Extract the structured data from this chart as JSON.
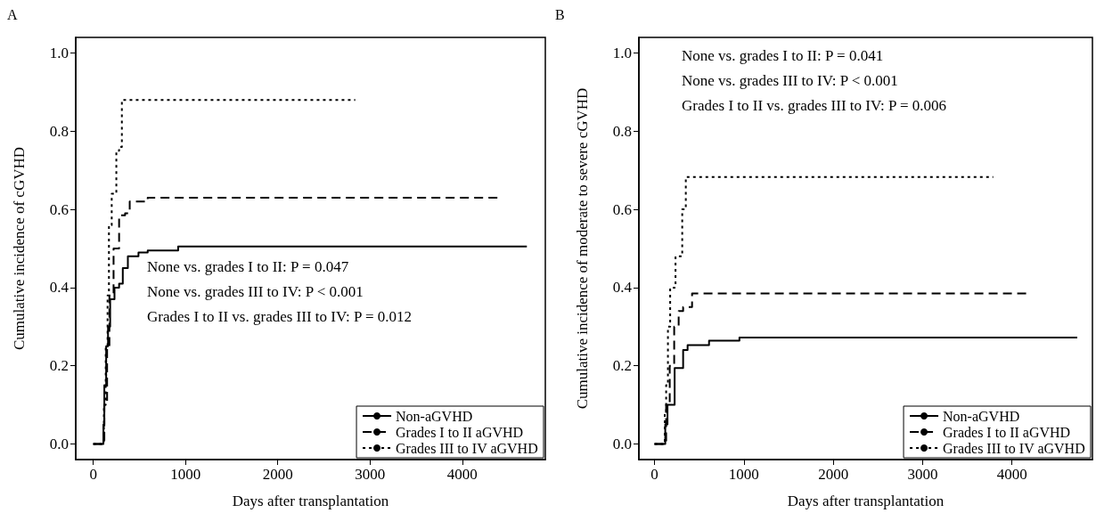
{
  "chart_data": [
    {
      "type": "step",
      "title": "A",
      "xlabel": "Days after transplantation",
      "ylabel": "Cumulative incidence of cGVHD",
      "xlim": [
        -190,
        4900
      ],
      "xticks": [
        0,
        1000,
        2000,
        3000,
        4000
      ],
      "ylim": [
        -0.04,
        1.04
      ],
      "yticks": [
        {
          "value": 0,
          "label": "0.0"
        },
        {
          "value": 0.2,
          "label": "0.2"
        },
        {
          "value": 0.4,
          "label": "0.4"
        },
        {
          "value": 0.6,
          "label": "0.6"
        },
        {
          "value": 0.8,
          "label": "0.8"
        },
        {
          "value": 1,
          "label": "1.0"
        }
      ],
      "grid": false,
      "legend": "bottom right",
      "marker": "none",
      "annotations": [
        "None vs. grades I to II: P = 0.047",
        "None vs. grades III to IV: P < 0.001",
        "Grades I to II vs. grades III to IV: P = 0.012"
      ],
      "series": [
        {
          "name": "Non-aGVHD",
          "color": "#000000",
          "line_style": "solid",
          "x": [
            0,
            100,
            110,
            120,
            140,
            160,
            183,
            230,
            280,
            320,
            375,
            490,
            590,
            920,
            4700
          ],
          "values": [
            0,
            0,
            0.05,
            0.15,
            0.25,
            0.3,
            0.37,
            0.4,
            0.41,
            0.45,
            0.48,
            0.49,
            0.495,
            0.505,
            0.505
          ]
        },
        {
          "name": "Grades I to II aGVHD",
          "color": "#000000",
          "line_style": "dashed",
          "x": [
            0,
            100,
            120,
            150,
            175,
            220,
            280,
            345,
            395,
            590,
            4400
          ],
          "values": [
            0,
            0,
            0.1,
            0.25,
            0.38,
            0.5,
            0.585,
            0.59,
            0.62,
            0.63,
            0.63
          ]
        },
        {
          "name": "Grades III to IV aGVHD",
          "color": "#000000",
          "line_style": "dotted",
          "x": [
            0,
            100,
            115,
            135,
            155,
            170,
            200,
            250,
            280,
            310,
            2840
          ],
          "values": [
            0,
            0,
            0.1,
            0.25,
            0.38,
            0.56,
            0.64,
            0.75,
            0.76,
            0.88,
            0.88
          ]
        }
      ]
    },
    {
      "type": "step",
      "title": "B",
      "xlabel": "Days after transplantation",
      "ylabel": "Cumulative incidence of moderate to severe cGVHD",
      "xlim": [
        -175,
        4900
      ],
      "xticks": [
        0,
        1000,
        2000,
        3000,
        4000
      ],
      "ylim": [
        -0.04,
        1.04
      ],
      "yticks": [
        {
          "value": 0,
          "label": "0.0"
        },
        {
          "value": 0.2,
          "label": "0.2"
        },
        {
          "value": 0.4,
          "label": "0.4"
        },
        {
          "value": 0.6,
          "label": "0.6"
        },
        {
          "value": 0.8,
          "label": "0.8"
        },
        {
          "value": 1,
          "label": "1.0"
        }
      ],
      "grid": false,
      "legend": "bottom right",
      "marker": "none",
      "annotations": [
        "None vs. grades I to II: P = 0.041",
        "None vs. grades III to IV: P < 0.001",
        "Grades I to II vs. grades III to IV: P = 0.006"
      ],
      "series": [
        {
          "name": "Non-aGVHD",
          "color": "#000000",
          "line_style": "solid",
          "x": [
            0,
            100,
            120,
            145,
            225,
            320,
            370,
            410,
            610,
            950,
            4730
          ],
          "values": [
            0,
            0,
            0.05,
            0.1,
            0.194,
            0.24,
            0.253,
            0.253,
            0.264,
            0.272,
            0.272
          ]
        },
        {
          "name": "Grades I to II aGVHD",
          "color": "#000000",
          "line_style": "dashed",
          "x": [
            0,
            100,
            130,
            170,
            220,
            270,
            320,
            420,
            4170
          ],
          "values": [
            0,
            0,
            0.1,
            0.2,
            0.3,
            0.34,
            0.35,
            0.385,
            0.385
          ]
        },
        {
          "name": "Grades III to IV aGVHD",
          "color": "#000000",
          "line_style": "dotted",
          "x": [
            0,
            100,
            115,
            130,
            150,
            175,
            235,
            310,
            350,
            3790
          ],
          "values": [
            0,
            0,
            0.08,
            0.15,
            0.3,
            0.4,
            0.48,
            0.6,
            0.683,
            0.683
          ]
        }
      ]
    }
  ]
}
